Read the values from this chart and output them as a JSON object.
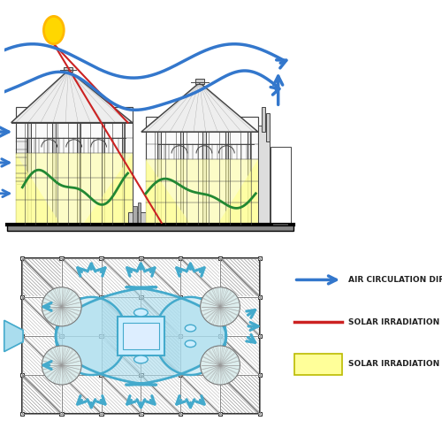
{
  "fig_width": 5.0,
  "fig_height": 4.84,
  "dpi": 100,
  "bg_color": "#ffffff",
  "sun_color": "#FFD700",
  "sun_ec": "#FFB800",
  "air_color": "#3377CC",
  "solar_line_color": "#CC2222",
  "solar_range_color": "#FFFF99",
  "solar_range_alpha": 0.75,
  "green_color": "#228833",
  "building_line": "#444444",
  "building_fill": "#F5F5F5",
  "building_fill2": "#E8E8E8",
  "floor_blue": "#44AACC",
  "floor_blue_light": "#AADDEE",
  "floor_bg": "#FFFFFF",
  "floor_hatch": "#AAAAAA",
  "legend_texts": [
    "AIR CIRCULATION DIRECTION",
    "SOLAR IRRADIATION ANGLE",
    "SOLAR IRRADIATION RANGE"
  ],
  "legend_arrow_color": "#3377CC",
  "legend_line_color": "#CC2222",
  "legend_rect_color": "#FFFF99",
  "legend_text_color": "#222222"
}
